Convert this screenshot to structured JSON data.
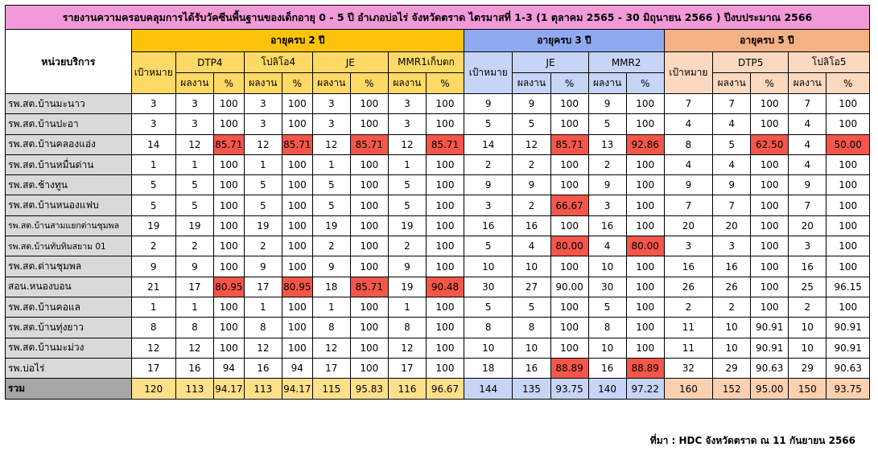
{
  "title": "รายงานความครอบคลุมการได้รับวัคซีนพื้นฐานของเด็กอายุ 0 - 5 ปี อำเภอบ่อไร่ จังหวัดตราด ไตรมาสที่ 1-3 (1 ตุลาคม 2565 - 30 มิถุนายน 2566 ) ปีงบประมาณ 2566",
  "unit_header": "หน่วยบริการ",
  "groups": {
    "age2": "อายุครบ 2 ปี",
    "age3": "อายุครบ 3 ปี",
    "age5": "อายุครบ 5 ปี"
  },
  "target_label": "เป้าหมาย",
  "result_label": "ผลงาน",
  "pct_label": "%",
  "vaccines": {
    "age2": [
      "DTP4",
      "โปลิโอ4",
      "JE",
      "MMR1เก็บตก"
    ],
    "age3": [
      "JE",
      "MMR2"
    ],
    "age5": [
      "DTP5",
      "โปลิโอ5"
    ]
  },
  "rows": [
    {
      "name": "รพ.สต.บ้านมะนาว",
      "small": false,
      "v": [
        "3",
        "3",
        "100",
        "3",
        "100",
        "3",
        "100",
        "3",
        "100",
        "9",
        "9",
        "100",
        "9",
        "100",
        "7",
        "7",
        "100",
        "7",
        "100"
      ]
    },
    {
      "name": "รพ.สต.บ้านปะอา",
      "small": false,
      "v": [
        "3",
        "3",
        "100",
        "3",
        "100",
        "3",
        "100",
        "3",
        "100",
        "5",
        "5",
        "100",
        "5",
        "100",
        "4",
        "4",
        "100",
        "4",
        "100"
      ]
    },
    {
      "name": "รพ.สต.บ้านคลองแอ่ง",
      "small": false,
      "v": [
        "14",
        "12",
        "85.71",
        "12",
        "85.71",
        "12",
        "85.71",
        "12",
        "85.71",
        "14",
        "12",
        "85.71",
        "13",
        "92.86",
        "8",
        "5",
        "62.50",
        "4",
        "50.00"
      ]
    },
    {
      "name": "รพ.สต.บ้านหมื่นด่าน",
      "small": false,
      "v": [
        "1",
        "1",
        "100",
        "1",
        "100",
        "1",
        "100",
        "1",
        "100",
        "2",
        "2",
        "100",
        "2",
        "100",
        "4",
        "4",
        "100",
        "4",
        "100"
      ]
    },
    {
      "name": "รพ.สต.ช้างทูน",
      "small": false,
      "v": [
        "5",
        "5",
        "100",
        "5",
        "100",
        "5",
        "100",
        "5",
        "100",
        "9",
        "9",
        "100",
        "9",
        "100",
        "9",
        "9",
        "100",
        "9",
        "100"
      ]
    },
    {
      "name": "รพ.สต.บ้านหนองแฟบ",
      "small": false,
      "v": [
        "5",
        "5",
        "100",
        "5",
        "100",
        "5",
        "100",
        "5",
        "100",
        "3",
        "2",
        "66.67",
        "3",
        "100",
        "7",
        "7",
        "100",
        "7",
        "100"
      ]
    },
    {
      "name": "รพ.สต.บ้านสามแยกด่านชุมพล",
      "small": true,
      "v": [
        "19",
        "19",
        "100",
        "19",
        "100",
        "19",
        "100",
        "19",
        "100",
        "16",
        "16",
        "100",
        "16",
        "100",
        "20",
        "20",
        "100",
        "20",
        "100"
      ]
    },
    {
      "name": "รพ.สต.บ้านทับทิมสยาม 01",
      "small": true,
      "v": [
        "2",
        "2",
        "100",
        "2",
        "100",
        "2",
        "100",
        "2",
        "100",
        "5",
        "4",
        "80.00",
        "4",
        "80.00",
        "3",
        "3",
        "100",
        "3",
        "100"
      ]
    },
    {
      "name": "รพ.สต.ด่านชุมพล",
      "small": false,
      "v": [
        "9",
        "9",
        "100",
        "9",
        "100",
        "9",
        "100",
        "9",
        "100",
        "10",
        "10",
        "100",
        "10",
        "100",
        "16",
        "16",
        "100",
        "16",
        "100"
      ]
    },
    {
      "name": "สอน.หนองบอน",
      "small": false,
      "v": [
        "21",
        "17",
        "80.95",
        "17",
        "80.95",
        "18",
        "85.71",
        "19",
        "90.48",
        "30",
        "27",
        "90.00",
        "30",
        "100",
        "26",
        "26",
        "100",
        "25",
        "96.15"
      ]
    },
    {
      "name": "รพ.สต.บ้านคอแล",
      "small": false,
      "v": [
        "1",
        "1",
        "100",
        "1",
        "100",
        "1",
        "100",
        "1",
        "100",
        "5",
        "5",
        "100",
        "5",
        "100",
        "2",
        "2",
        "100",
        "2",
        "100"
      ]
    },
    {
      "name": "รพ.สต.บ้านทุ่งยาว",
      "small": false,
      "v": [
        "8",
        "8",
        "100",
        "8",
        "100",
        "8",
        "100",
        "8",
        "100",
        "8",
        "8",
        "100",
        "8",
        "100",
        "11",
        "10",
        "90.91",
        "10",
        "90.91"
      ]
    },
    {
      "name": "รพ.สต.บ้านมะม่วง",
      "small": false,
      "v": [
        "12",
        "12",
        "100",
        "12",
        "100",
        "12",
        "100",
        "12",
        "100",
        "10",
        "10",
        "100",
        "10",
        "100",
        "11",
        "10",
        "90.91",
        "10",
        "90.91"
      ]
    },
    {
      "name": "รพ.บ่อไร่",
      "small": false,
      "v": [
        "17",
        "16",
        "94",
        "16",
        "94",
        "17",
        "100",
        "17",
        "100",
        "18",
        "16",
        "88.89",
        "16",
        "88.89",
        "32",
        "29",
        "90.63",
        "29",
        "90.63"
      ]
    }
  ],
  "red_cells": [
    [
      2,
      2
    ],
    [
      2,
      4
    ],
    [
      2,
      6
    ],
    [
      2,
      8
    ],
    [
      2,
      11
    ],
    [
      2,
      13
    ],
    [
      2,
      16
    ],
    [
      2,
      18
    ],
    [
      5,
      11
    ],
    [
      7,
      11
    ],
    [
      7,
      13
    ],
    [
      9,
      2
    ],
    [
      9,
      4
    ],
    [
      9,
      6
    ],
    [
      9,
      8
    ],
    [
      13,
      11
    ],
    [
      13,
      13
    ]
  ],
  "total": {
    "label": "รวม",
    "v": [
      "120",
      "113",
      "94.17",
      "113",
      "94.17",
      "115",
      "95.83",
      "116",
      "96.67",
      "144",
      "135",
      "93.75",
      "140",
      "97.22",
      "160",
      "152",
      "95.00",
      "150",
      "93.75"
    ]
  },
  "source": "ที่มา : HDC จังหวัดตราด ณ 11 กันยายน  2566"
}
